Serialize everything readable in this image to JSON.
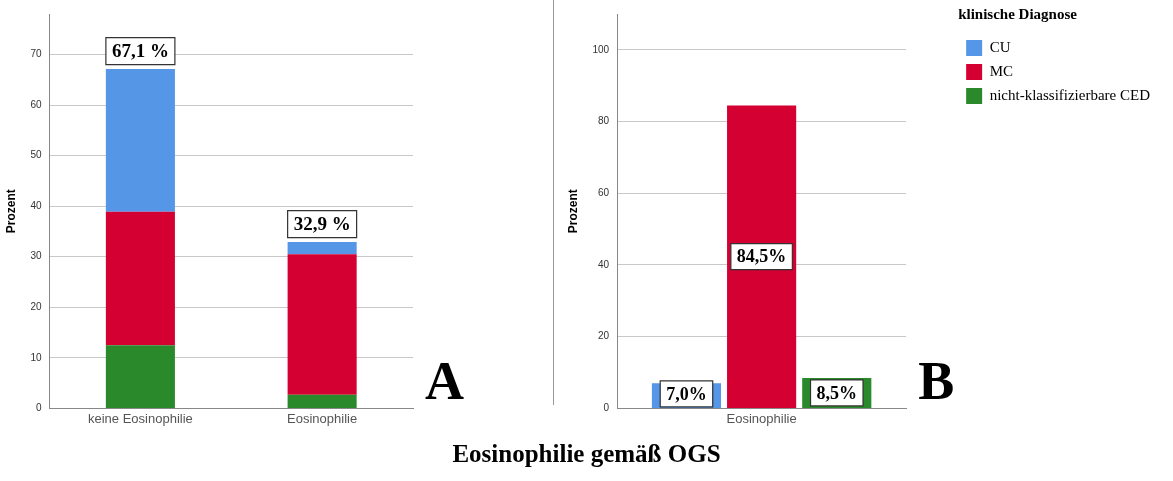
{
  "chart_data": [
    {
      "type": "bar",
      "stacked": true,
      "ylabel": "Prozent",
      "categories": [
        "keine Eosinophilie",
        "Eosinophilie"
      ],
      "series": [
        {
          "color": "#2a8a2b",
          "values": [
            12.5,
            2.7
          ]
        },
        {
          "color": "#d50032",
          "values": [
            26.4,
            27.8
          ]
        },
        {
          "color": "#5596e6",
          "values": [
            28.2,
            2.4
          ]
        }
      ],
      "totals": [
        "67,1 %",
        "32,9 %"
      ],
      "ylim": [
        0,
        78
      ],
      "yticks": [
        0,
        10,
        20,
        30,
        40,
        50,
        60,
        70
      ],
      "grid": "y",
      "legend": false,
      "annotations": [
        "A"
      ]
    },
    {
      "type": "bar",
      "ylabel": "Prozent",
      "xlabel": "Eosinophilie gemäß OGS",
      "categories": [
        "Eosinophilie"
      ],
      "legend_title": "klinische Diagnose",
      "series": [
        {
          "name": "CU",
          "color": "#5596e6",
          "values": [
            7.0
          ],
          "value_labels": [
            "7,0%"
          ]
        },
        {
          "name": "MC",
          "color": "#d50032",
          "values": [
            84.5
          ],
          "value_labels": [
            "84,5%"
          ]
        },
        {
          "name": "nicht-klassifizierbare CED",
          "color": "#2a8a2b",
          "values": [
            8.5
          ],
          "value_labels": [
            "8,5%"
          ]
        }
      ],
      "ylim": [
        0,
        110
      ],
      "yticks": [
        0,
        20,
        40,
        60,
        80,
        100
      ],
      "grid": "y",
      "legend": "top right",
      "annotations": [
        "B"
      ]
    }
  ]
}
